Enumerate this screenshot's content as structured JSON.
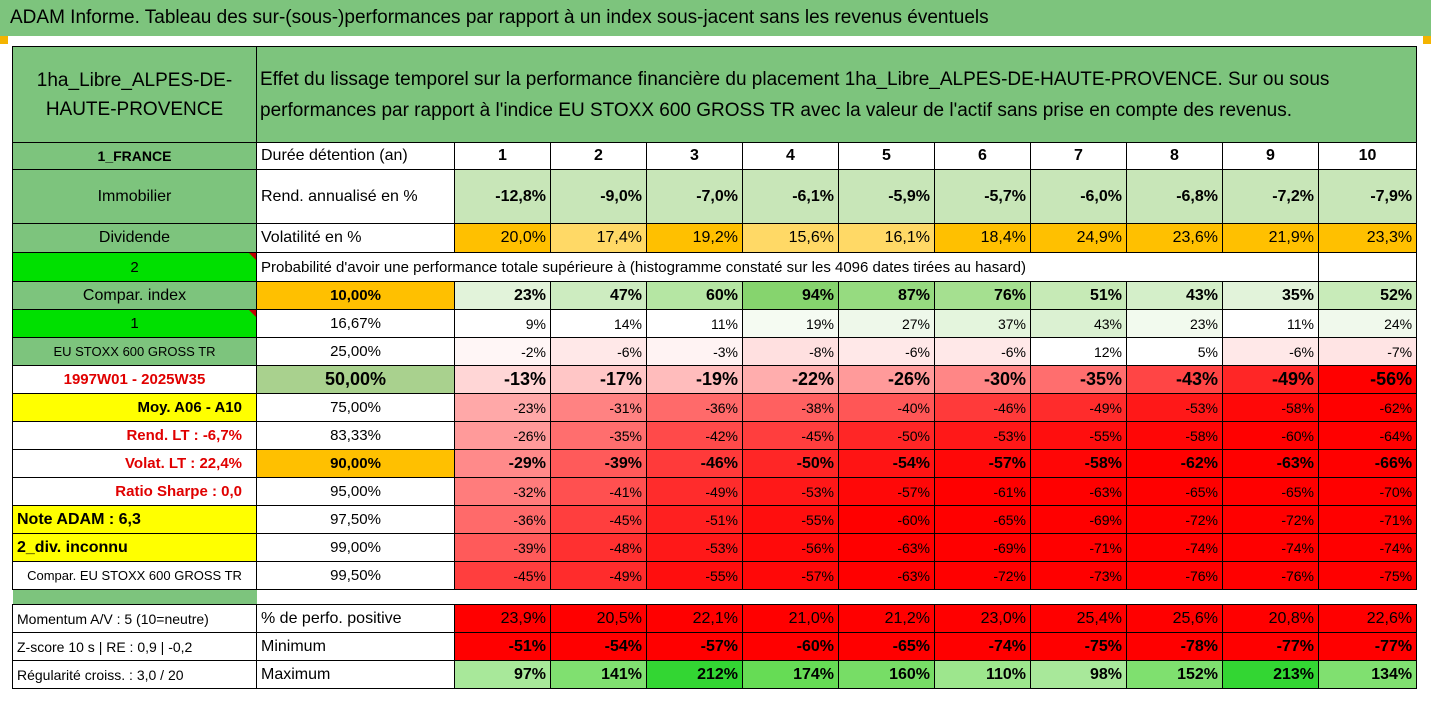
{
  "title": "ADAM Informe. Tableau des sur-(sous-)performances par rapport à un index sous-jacent sans les revenus éventuels",
  "header": {
    "fund": "1ha_Libre_ALPES-DE-HAUTE-PROVENCE",
    "description": "Effet du lissage temporel sur la performance financière du placement 1ha_Libre_ALPES-DE-HAUTE-PROVENCE. Sur ou sous performances par rapport à l'indice EU STOXX 600 GROSS TR avec la valeur de l'actif sans prise en compte des revenus."
  },
  "side": {
    "country": "1_FRANCE",
    "sector": "Immobilier",
    "dividend": "Dividende",
    "two": "2",
    "compar_index": "Compar. index",
    "one": "1",
    "index_name": "EU STOXX 600 GROSS TR",
    "period": "1997W01 - 2025W35",
    "moy": "Moy. A06 - A10",
    "rend_lt": "Rend. LT :   -6,7%",
    "volat_lt": "Volat. LT :   22,4%",
    "sharpe": "Ratio Sharpe :    0,0",
    "note": "Note ADAM : 6,3",
    "div_unknown": "2_div. inconnu",
    "compar_index2": "Compar. EU STOXX 600 GROSS TR",
    "momentum": "Momentum A/V : 5 (10=neutre)",
    "zscore": "Z-score 10 s  |  RE : 0,9  |  -0,2",
    "regularite": "Régularité croiss. : 3,0 / 20"
  },
  "labels": {
    "duration": "Durée détention (an)",
    "rend": "Rend. annualisé en %",
    "vol": "Volatilité en %",
    "prob": "Probabilité d'avoir une performance totale supérieure à (histogramme constaté sur les 4096 dates tirées au hasard)",
    "pct_pos": "% de perfo. positive",
    "min": "Minimum",
    "max": "Maximum"
  },
  "years": [
    "1",
    "2",
    "3",
    "4",
    "5",
    "6",
    "7",
    "8",
    "9",
    "10"
  ],
  "rend": [
    "-12,8%",
    "-9,0%",
    "-7,0%",
    "-6,1%",
    "-5,9%",
    "-5,7%",
    "-6,0%",
    "-6,8%",
    "-7,2%",
    "-7,9%"
  ],
  "vol": [
    "20,0%",
    "17,4%",
    "19,2%",
    "15,6%",
    "16,1%",
    "18,4%",
    "24,9%",
    "23,6%",
    "21,9%",
    "23,3%"
  ],
  "vol_colors": [
    "#ffc000",
    "#ffd966",
    "#ffc000",
    "#ffd966",
    "#ffd966",
    "#ffc000",
    "#ffc000",
    "#ffc000",
    "#ffc000",
    "#ffc000"
  ],
  "prob_rows": [
    {
      "pct": "10,00%",
      "vals": [
        "23%",
        "47%",
        "60%",
        "94%",
        "87%",
        "76%",
        "51%",
        "43%",
        "35%",
        "52%"
      ],
      "colors": [
        "#e2f3da",
        "#cdecc0",
        "#b5e6a3",
        "#86d46e",
        "#96db80",
        "#a5e090",
        "#c6eab6",
        "#d4efc9",
        "#e2f3da",
        "#c8ebb9"
      ]
    },
    {
      "pct": "16,67%",
      "vals": [
        "9%",
        "14%",
        "11%",
        "19%",
        "27%",
        "37%",
        "43%",
        "23%",
        "11%",
        "24%"
      ],
      "colors": [
        "#ffffff",
        "#ffffff",
        "#ffffff",
        "#f5fbf2",
        "#eef8ea",
        "#e4f5dd",
        "#dbf1d2",
        "#f2faee",
        "#ffffff",
        "#f0f9ec"
      ]
    },
    {
      "pct": "25,00%",
      "vals": [
        "-2%",
        "-6%",
        "-3%",
        "-8%",
        "-6%",
        "-6%",
        "12%",
        "5%",
        "-6%",
        "-7%"
      ],
      "colors": [
        "#fff6f6",
        "#ffe8e8",
        "#fff3f3",
        "#ffe0e0",
        "#ffe8e8",
        "#ffe8e8",
        "#ffffff",
        "#ffffff",
        "#ffe8e8",
        "#ffe4e4"
      ]
    },
    {
      "pct": "50,00%",
      "vals": [
        "-13%",
        "-17%",
        "-19%",
        "-22%",
        "-26%",
        "-30%",
        "-35%",
        "-43%",
        "-49%",
        "-56%"
      ],
      "colors": [
        "#ffd6d6",
        "#ffc6c6",
        "#ffbcbc",
        "#ffadad",
        "#ff9a9a",
        "#ff8686",
        "#ff6e6e",
        "#ff4545",
        "#ff2626",
        "#ff0000"
      ]
    },
    {
      "pct": "75,00%",
      "vals": [
        "-23%",
        "-31%",
        "-36%",
        "-38%",
        "-40%",
        "-46%",
        "-49%",
        "-53%",
        "-58%",
        "-62%"
      ],
      "colors": [
        "#ffa8a8",
        "#ff8282",
        "#ff6a6a",
        "#ff6060",
        "#ff5656",
        "#ff3a3a",
        "#ff2c2c",
        "#ff1818",
        "#ff0808",
        "#ff0000"
      ]
    },
    {
      "pct": "83,33%",
      "vals": [
        "-26%",
        "-35%",
        "-42%",
        "-45%",
        "-50%",
        "-53%",
        "-55%",
        "-58%",
        "-60%",
        "-64%"
      ],
      "colors": [
        "#ff9a9a",
        "#ff6e6e",
        "#ff4a4a",
        "#ff3e3e",
        "#ff2626",
        "#ff1818",
        "#ff0e0e",
        "#ff0606",
        "#ff0000",
        "#ff0000"
      ]
    },
    {
      "pct": "90,00%",
      "vals": [
        "-29%",
        "-39%",
        "-46%",
        "-50%",
        "-54%",
        "-57%",
        "-58%",
        "-62%",
        "-63%",
        "-66%"
      ],
      "colors": [
        "#ff8a8a",
        "#ff5a5a",
        "#ff3a3a",
        "#ff2626",
        "#ff1414",
        "#ff0808",
        "#ff0606",
        "#ff0000",
        "#ff0000",
        "#ff0000"
      ]
    },
    {
      "pct": "95,00%",
      "vals": [
        "-32%",
        "-41%",
        "-49%",
        "-53%",
        "-57%",
        "-61%",
        "-63%",
        "-65%",
        "-65%",
        "-70%"
      ],
      "colors": [
        "#ff7c7c",
        "#ff5050",
        "#ff2c2c",
        "#ff1818",
        "#ff0808",
        "#ff0000",
        "#ff0000",
        "#ff0000",
        "#ff0000",
        "#ff0000"
      ]
    },
    {
      "pct": "97,50%",
      "vals": [
        "-36%",
        "-45%",
        "-51%",
        "-55%",
        "-60%",
        "-65%",
        "-69%",
        "-72%",
        "-72%",
        "-71%"
      ],
      "colors": [
        "#ff6a6a",
        "#ff3e3e",
        "#ff2020",
        "#ff0e0e",
        "#ff0000",
        "#ff0000",
        "#ff0000",
        "#ff0000",
        "#ff0000",
        "#ff0000"
      ]
    },
    {
      "pct": "99,00%",
      "vals": [
        "-39%",
        "-48%",
        "-53%",
        "-56%",
        "-63%",
        "-69%",
        "-71%",
        "-74%",
        "-74%",
        "-74%"
      ],
      "colors": [
        "#ff5a5a",
        "#ff3030",
        "#ff1818",
        "#ff0a0a",
        "#ff0000",
        "#ff0000",
        "#ff0000",
        "#ff0000",
        "#ff0000",
        "#ff0000"
      ]
    },
    {
      "pct": "99,50%",
      "vals": [
        "-45%",
        "-49%",
        "-55%",
        "-57%",
        "-63%",
        "-72%",
        "-73%",
        "-76%",
        "-76%",
        "-75%"
      ],
      "colors": [
        "#ff3e3e",
        "#ff2c2c",
        "#ff0e0e",
        "#ff0808",
        "#ff0000",
        "#ff0000",
        "#ff0000",
        "#ff0000",
        "#ff0000",
        "#ff0000"
      ]
    }
  ],
  "pct_pos": [
    "23,9%",
    "20,5%",
    "22,1%",
    "21,0%",
    "21,2%",
    "23,0%",
    "25,4%",
    "25,6%",
    "20,8%",
    "22,6%"
  ],
  "minimum": [
    "-51%",
    "-54%",
    "-57%",
    "-60%",
    "-65%",
    "-74%",
    "-75%",
    "-78%",
    "-77%",
    "-77%"
  ],
  "maximum": [
    "97%",
    "141%",
    "212%",
    "174%",
    "160%",
    "110%",
    "98%",
    "152%",
    "213%",
    "134%"
  ],
  "max_colors": [
    "#a8e89a",
    "#80e070",
    "#33d633",
    "#66dc55",
    "#77dd66",
    "#9de68d",
    "#a8e89a",
    "#7fe06f",
    "#33d633",
    "#80e070"
  ]
}
